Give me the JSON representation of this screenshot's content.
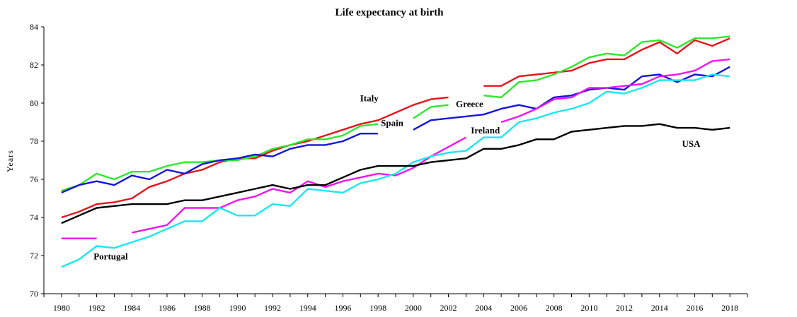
{
  "chart_data": {
    "type": "line",
    "title": "Life expectancy at birth",
    "ylabel": "Years",
    "xlabel": "",
    "ylim": [
      70,
      84
    ],
    "yticks": [
      70,
      72,
      74,
      76,
      78,
      80,
      82,
      84
    ],
    "xlim": [
      1979,
      2019
    ],
    "xticks": [
      1980,
      1982,
      1984,
      1986,
      1988,
      1990,
      1992,
      1994,
      1996,
      1998,
      2000,
      2002,
      2004,
      2006,
      2008,
      2010,
      2012,
      2014,
      2016,
      2018
    ],
    "grid": false,
    "legend": "inline labels",
    "x": [
      1980,
      1981,
      1982,
      1983,
      1984,
      1985,
      1986,
      1987,
      1988,
      1989,
      1990,
      1991,
      1992,
      1993,
      1994,
      1995,
      1996,
      1997,
      1998,
      1999,
      2000,
      2001,
      2002,
      2003,
      2004,
      2005,
      2006,
      2007,
      2008,
      2009,
      2010,
      2011,
      2012,
      2013,
      2014,
      2015,
      2016,
      2017,
      2018
    ],
    "series": [
      {
        "name": "Italy",
        "color": "#e8141b",
        "values": [
          74.0,
          74.3,
          74.7,
          74.8,
          75.0,
          75.6,
          75.9,
          76.3,
          76.5,
          76.9,
          77.1,
          77.1,
          77.5,
          77.8,
          78.0,
          78.3,
          78.6,
          78.9,
          79.1,
          79.5,
          79.9,
          80.2,
          80.3,
          null,
          80.9,
          80.9,
          81.4,
          81.5,
          81.6,
          81.7,
          82.1,
          82.3,
          82.3,
          82.8,
          83.2,
          82.6,
          83.3,
          83.0,
          83.4
        ]
      },
      {
        "name": "Greece",
        "color": "#2ee82e",
        "values": [
          75.4,
          75.7,
          76.3,
          76.0,
          76.4,
          76.4,
          76.7,
          76.9,
          76.9,
          77.0,
          77.0,
          77.2,
          77.6,
          77.8,
          78.1,
          78.1,
          78.3,
          78.8,
          78.9,
          null,
          79.2,
          79.8,
          79.9,
          null,
          80.4,
          80.3,
          81.1,
          81.2,
          81.5,
          81.9,
          82.4,
          82.6,
          82.5,
          83.2,
          83.3,
          82.9,
          83.4,
          83.4,
          83.5
        ]
      },
      {
        "name": "Spain",
        "color": "#1515d9",
        "values": [
          75.3,
          75.7,
          75.9,
          75.7,
          76.2,
          76.0,
          76.5,
          76.3,
          76.8,
          77.0,
          77.1,
          77.3,
          77.2,
          77.6,
          77.8,
          77.8,
          78.0,
          78.4,
          78.4,
          null,
          78.6,
          79.1,
          79.2,
          79.3,
          79.4,
          79.7,
          79.9,
          79.7,
          80.3,
          80.4,
          80.7,
          80.8,
          80.7,
          81.4,
          81.5,
          81.1,
          81.5,
          81.4,
          81.9
        ]
      },
      {
        "name": "Ireland",
        "color": "#f015f0",
        "values": [
          72.9,
          72.9,
          72.9,
          null,
          73.2,
          73.4,
          73.6,
          74.5,
          74.5,
          74.5,
          74.9,
          75.1,
          75.5,
          75.3,
          75.9,
          75.6,
          75.9,
          76.1,
          76.3,
          76.2,
          76.6,
          77.2,
          77.7,
          78.2,
          null,
          79.0,
          79.3,
          79.7,
          80.2,
          80.3,
          80.8,
          80.8,
          80.9,
          81.0,
          81.4,
          81.5,
          81.7,
          82.2,
          82.3
        ]
      },
      {
        "name": "Portugal",
        "color": "#18e8f0",
        "values": [
          71.4,
          71.8,
          72.5,
          72.4,
          72.7,
          73.0,
          73.4,
          73.8,
          73.8,
          74.5,
          74.1,
          74.1,
          74.7,
          74.6,
          75.5,
          75.4,
          75.3,
          75.8,
          76.0,
          76.3,
          76.9,
          77.2,
          77.4,
          77.5,
          78.2,
          78.2,
          79.0,
          79.2,
          79.5,
          79.7,
          80.0,
          80.6,
          80.5,
          80.8,
          81.2,
          81.2,
          81.2,
          81.5,
          81.4
        ]
      },
      {
        "name": "USA",
        "color": "#000000",
        "values": [
          73.7,
          74.1,
          74.5,
          74.6,
          74.7,
          74.7,
          74.7,
          74.9,
          74.9,
          75.1,
          75.3,
          75.5,
          75.7,
          75.5,
          75.7,
          75.7,
          76.1,
          76.5,
          76.7,
          76.7,
          76.7,
          76.9,
          77.0,
          77.1,
          77.6,
          77.6,
          77.8,
          78.1,
          78.1,
          78.5,
          78.6,
          78.7,
          78.8,
          78.8,
          78.9,
          78.7,
          78.7,
          78.6,
          78.7
        ]
      }
    ]
  }
}
